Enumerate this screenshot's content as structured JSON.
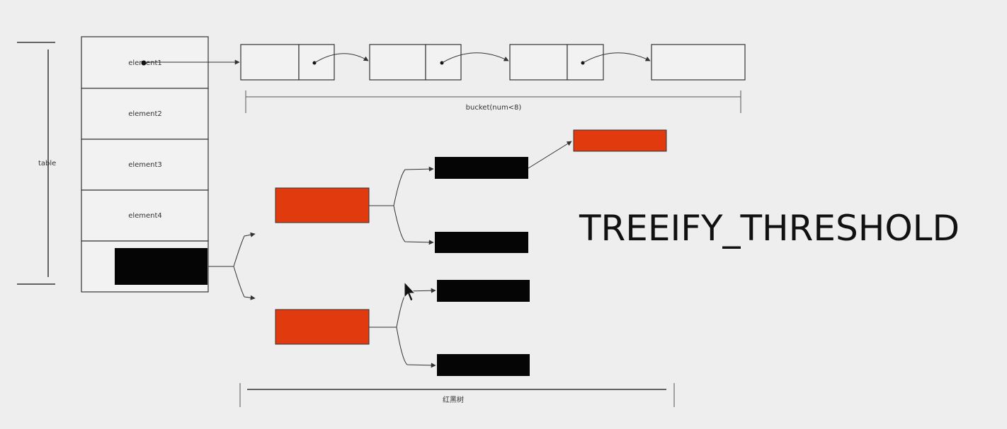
{
  "table": {
    "label": "table",
    "cells": [
      "element1",
      "element2",
      "element3",
      "element4",
      ""
    ]
  },
  "bucket": {
    "label": "bucket(num<8)"
  },
  "tree": {
    "label": "红黑树"
  },
  "threshold": {
    "label": "TREEIFY_THRESHOLD"
  },
  "colors": {
    "red_node": "#e03a0e",
    "black_node": "#050505",
    "line": "#333333",
    "background": "#eeeeee"
  }
}
